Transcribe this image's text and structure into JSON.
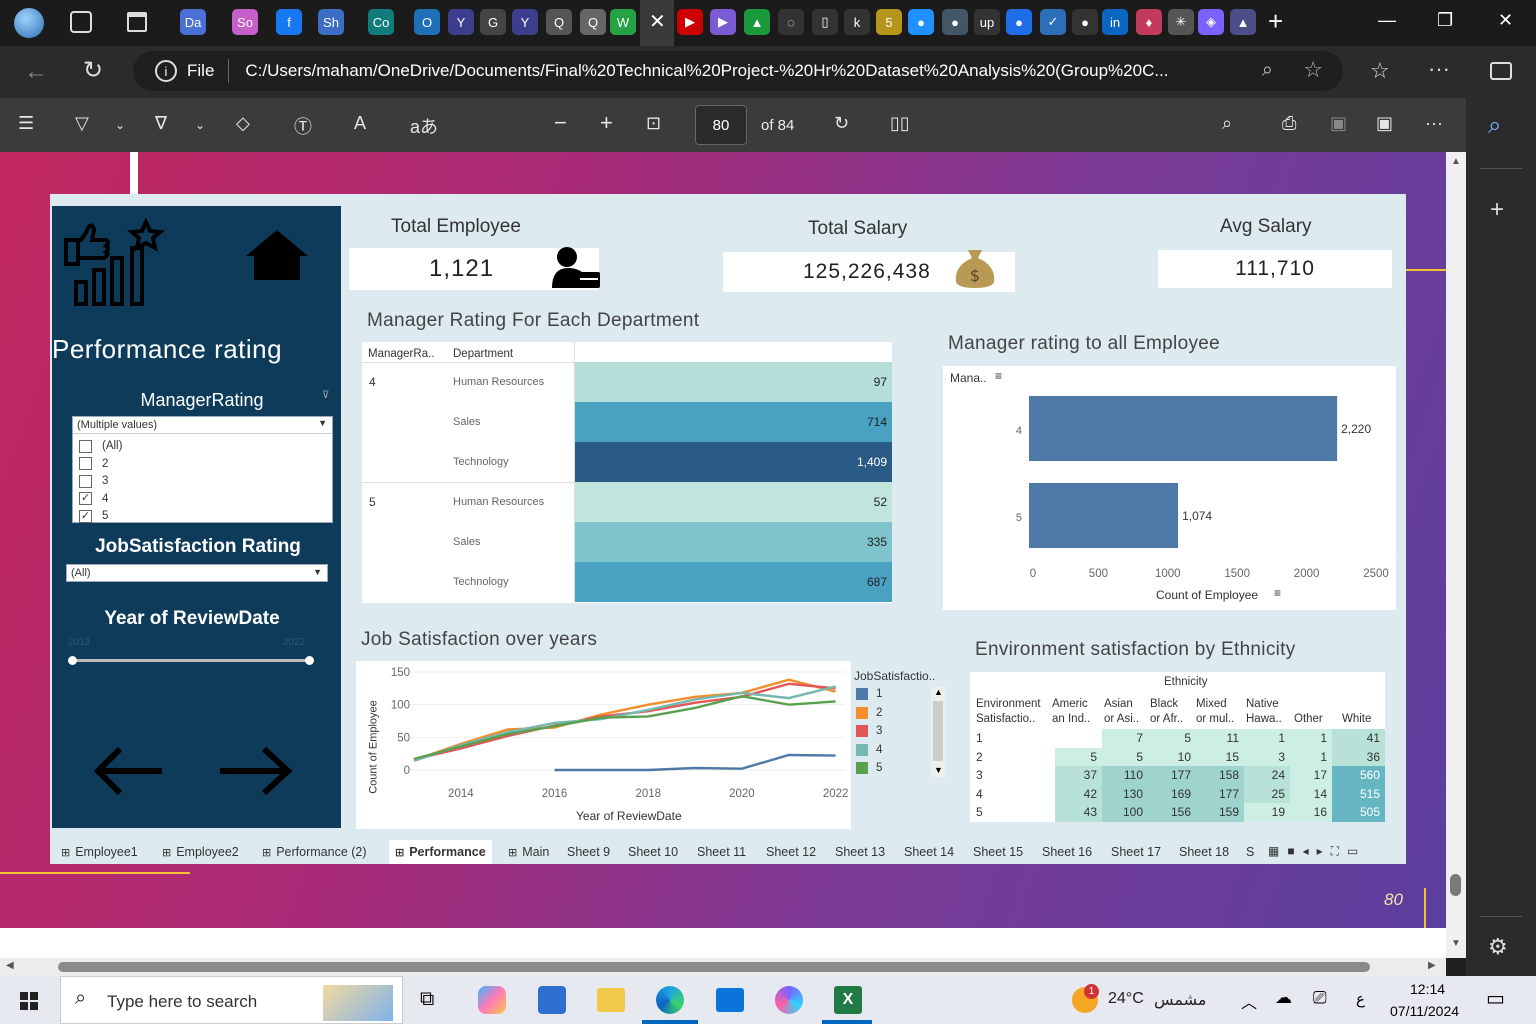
{
  "browser": {
    "tab_icons": [
      "Da",
      "So",
      "f",
      "Sh",
      "Co",
      "O",
      "Y",
      "G",
      "Y",
      "Q",
      "Q",
      "W",
      "✕",
      "▶",
      "▶",
      "▲",
      "◌",
      "▯",
      "k",
      "5",
      "●",
      "●",
      "up",
      "●",
      "✓",
      "●",
      "in",
      "♦",
      "✳",
      "◈",
      "▲"
    ],
    "address": {
      "scheme_label": "File",
      "url": "C:/Users/maham/OneDrive/Documents/Final%20Technical%20Project-%20Hr%20Dataset%20Analysis%20(Group%20C..."
    }
  },
  "pdf_toolbar": {
    "page_value": "80",
    "page_total": "of 84"
  },
  "dashboard": {
    "sidebar": {
      "title": "Performance rating",
      "manager_filter": {
        "label": "ManagerRating",
        "selected": "(Multiple values)",
        "options": [
          {
            "label": "(All)",
            "checked": false
          },
          {
            "label": "2",
            "checked": false
          },
          {
            "label": "3",
            "checked": false
          },
          {
            "label": "4",
            "checked": true
          },
          {
            "label": "5",
            "checked": true
          }
        ]
      },
      "job_filter": {
        "label": "JobSatisfaction Rating",
        "selected": "(All)"
      },
      "year_filter": {
        "label": "Year of ReviewDate",
        "min": "2013",
        "max": "2022"
      }
    },
    "kpis": [
      {
        "title": "Total Employee",
        "value": "1,121"
      },
      {
        "title": "Total Salary",
        "value": "125,226,438"
      },
      {
        "title": "Avg Salary",
        "value": "111,710"
      }
    ],
    "dept_table": {
      "title": "Manager Rating For Each Department",
      "headers": [
        "ManagerRa..",
        "Department"
      ],
      "rows": [
        {
          "rating": "4",
          "dept": "Human Resources",
          "value": "97",
          "color": "#b6ded8"
        },
        {
          "rating": "",
          "dept": "Sales",
          "value": "714",
          "color": "#4aa2c2"
        },
        {
          "rating": "",
          "dept": "Technology",
          "value": "1,409",
          "color": "#2a5a86"
        },
        {
          "rating": "5",
          "dept": "Human Resources",
          "value": "52",
          "color": "#c0e5dc"
        },
        {
          "rating": "",
          "dept": "Sales",
          "value": "335",
          "color": "#7fc4cc"
        },
        {
          "rating": "",
          "dept": "Technology",
          "value": "687",
          "color": "#4aa2c2"
        }
      ]
    },
    "bar_chart": {
      "title": "Manager rating to all Employee",
      "axis_header": "Mana..",
      "xlabel": "Count of Employee"
    },
    "line_chart": {
      "title": "Job Satisfaction over years",
      "ylabel": "Count of Employee",
      "xlabel": "Year of ReviewDate",
      "legend_title": "JobSatisfactio.."
    },
    "env_table": {
      "title": "Environment satisfaction  by Ethnicity",
      "group_header": "Ethnicity",
      "headers": [
        [
          "Environment",
          "Satisfactio.."
        ],
        [
          "Americ",
          "an Ind.."
        ],
        [
          "Asian",
          "or Asi.."
        ],
        [
          "Black",
          "or Afr.."
        ],
        [
          "Mixed",
          "or mul.."
        ],
        [
          "Native",
          "Hawa.."
        ],
        [
          "",
          "Other"
        ],
        [
          "",
          "White"
        ]
      ],
      "rows": [
        [
          "1",
          "",
          "7",
          "5",
          "11",
          "1",
          "1",
          "41"
        ],
        [
          "2",
          "5",
          "5",
          "10",
          "15",
          "3",
          "1",
          "36"
        ],
        [
          "3",
          "37",
          "110",
          "177",
          "158",
          "24",
          "17",
          "560"
        ],
        [
          "4",
          "42",
          "130",
          "169",
          "177",
          "25",
          "14",
          "515"
        ],
        [
          "5",
          "43",
          "100",
          "156",
          "159",
          "19",
          "16",
          "505"
        ]
      ]
    },
    "sheet_tabs": [
      "Employee1",
      "Employee2",
      "Performance (2)",
      "Performance",
      "Main",
      "Sheet 9",
      "Sheet 10",
      "Sheet 11",
      "Sheet 12",
      "Sheet 13",
      "Sheet 14",
      "Sheet 15",
      "Sheet 16",
      "Sheet 17",
      "Sheet 18",
      "S"
    ]
  },
  "page_number": "80",
  "taskbar": {
    "search_placeholder": "Type here to search",
    "weather": "24°C",
    "weather_text": "مشمس",
    "lang": "ع",
    "time": "12:14",
    "date": "07/11/2024",
    "badge": "1"
  },
  "chart_data": [
    {
      "type": "bar",
      "title": "Manager rating to all Employee",
      "categories": [
        "4",
        "5"
      ],
      "values": [
        2220,
        1074
      ],
      "value_labels": [
        "2,220",
        "1,074"
      ],
      "xlabel": "Count of Employee",
      "xlim": [
        0,
        2500
      ],
      "ticks": [
        0,
        500,
        1000,
        1500,
        2000,
        2500
      ],
      "orientation": "horizontal",
      "color": "#4e79a7"
    },
    {
      "type": "line",
      "title": "Job Satisfaction over years",
      "x": [
        2013,
        2014,
        2015,
        2016,
        2017,
        2018,
        2019,
        2020,
        2021,
        2022
      ],
      "ylim": [
        0,
        150
      ],
      "yticks": [
        0,
        50,
        100,
        150
      ],
      "xticks": [
        2014,
        2016,
        2018,
        2020,
        2022
      ],
      "xlabel": "Year of ReviewDate",
      "ylabel": "Count of Employee",
      "series": [
        {
          "name": "1",
          "color": "#4e79a7",
          "values": [
            null,
            null,
            null,
            0,
            0,
            0,
            3,
            2,
            23,
            22
          ]
        },
        {
          "name": "2",
          "color": "#f28e2b",
          "values": [
            15,
            40,
            62,
            65,
            85,
            100,
            112,
            118,
            138,
            120
          ]
        },
        {
          "name": "3",
          "color": "#e15759",
          "values": [
            16,
            33,
            52,
            68,
            82,
            90,
            103,
            112,
            132,
            125
          ]
        },
        {
          "name": "4",
          "color": "#76b7b2",
          "values": [
            14,
            38,
            58,
            72,
            78,
            92,
            108,
            118,
            110,
            128
          ]
        },
        {
          "name": "5",
          "color": "#59a14f",
          "values": [
            17,
            36,
            55,
            67,
            80,
            82,
            95,
            113,
            100,
            105
          ]
        }
      ]
    }
  ]
}
